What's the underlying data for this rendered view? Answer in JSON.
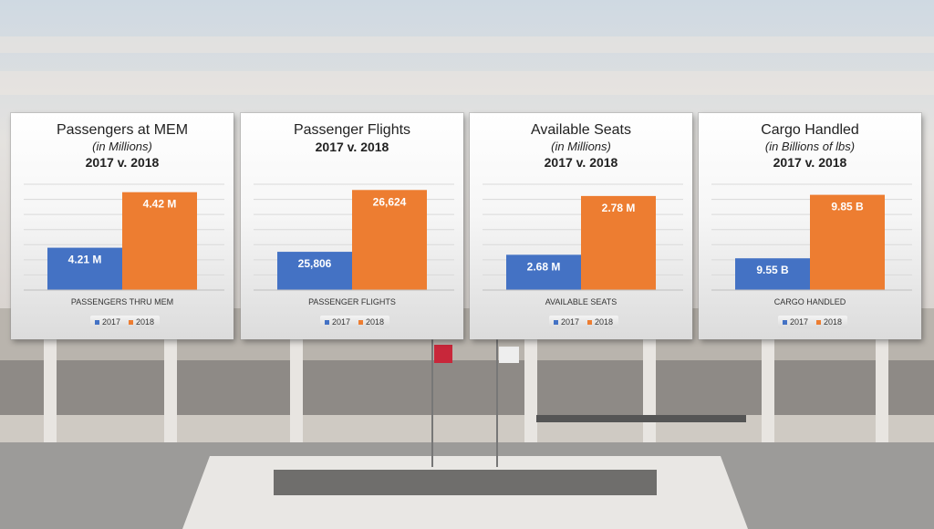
{
  "colors": {
    "y2017": "#4472c4",
    "y2018": "#ed7d31",
    "grid": "#d9d9d9",
    "sky_top": "#d7dde5",
    "sky_mid": "#e7e2dd"
  },
  "legend": {
    "labels": [
      "2017",
      "2018"
    ]
  },
  "chart_data": [
    {
      "type": "bar",
      "title": "Passengers at MEM",
      "subtitle": "(in Millions)",
      "comparison": "2017 v. 2018",
      "categories": [
        "PASSENGERS THRU MEM"
      ],
      "series": [
        {
          "name": "2017",
          "values": [
            4.21
          ],
          "label": "4.21 M"
        },
        {
          "name": "2018",
          "values": [
            4.42
          ],
          "label": "4.42 M"
        }
      ],
      "ylim": [
        4.05,
        4.45
      ],
      "grid": true,
      "legend_position": "bottom"
    },
    {
      "type": "bar",
      "title": "Passenger Flights",
      "subtitle": "",
      "comparison": "2017 v. 2018",
      "categories": [
        "PASSENGER FLIGHTS"
      ],
      "series": [
        {
          "name": "2017",
          "values": [
            25806
          ],
          "label": "25,806"
        },
        {
          "name": "2018",
          "values": [
            26624
          ],
          "label": "26,624"
        }
      ],
      "ylim": [
        25300,
        26700
      ],
      "grid": true,
      "legend_position": "bottom"
    },
    {
      "type": "bar",
      "title": "Available Seats",
      "subtitle": "(in Millions)",
      "comparison": "2017 v. 2018",
      "categories": [
        "AVAILABLE SEATS"
      ],
      "series": [
        {
          "name": "2017",
          "values": [
            2.68
          ],
          "label": "2.68 M"
        },
        {
          "name": "2018",
          "values": [
            2.78
          ],
          "label": "2.78 M"
        }
      ],
      "ylim": [
        2.62,
        2.8
      ],
      "grid": true,
      "legend_position": "bottom"
    },
    {
      "type": "bar",
      "title": "Cargo Handled",
      "subtitle": "(in Billions of lbs)",
      "comparison": "2017 v. 2018",
      "categories": [
        "CARGO HANDLED"
      ],
      "series": [
        {
          "name": "2017",
          "values": [
            9.55
          ],
          "label": "9.55 B"
        },
        {
          "name": "2018",
          "values": [
            9.85
          ],
          "label": "9.85 B"
        }
      ],
      "ylim": [
        9.4,
        9.9
      ],
      "grid": true,
      "legend_position": "bottom"
    }
  ]
}
